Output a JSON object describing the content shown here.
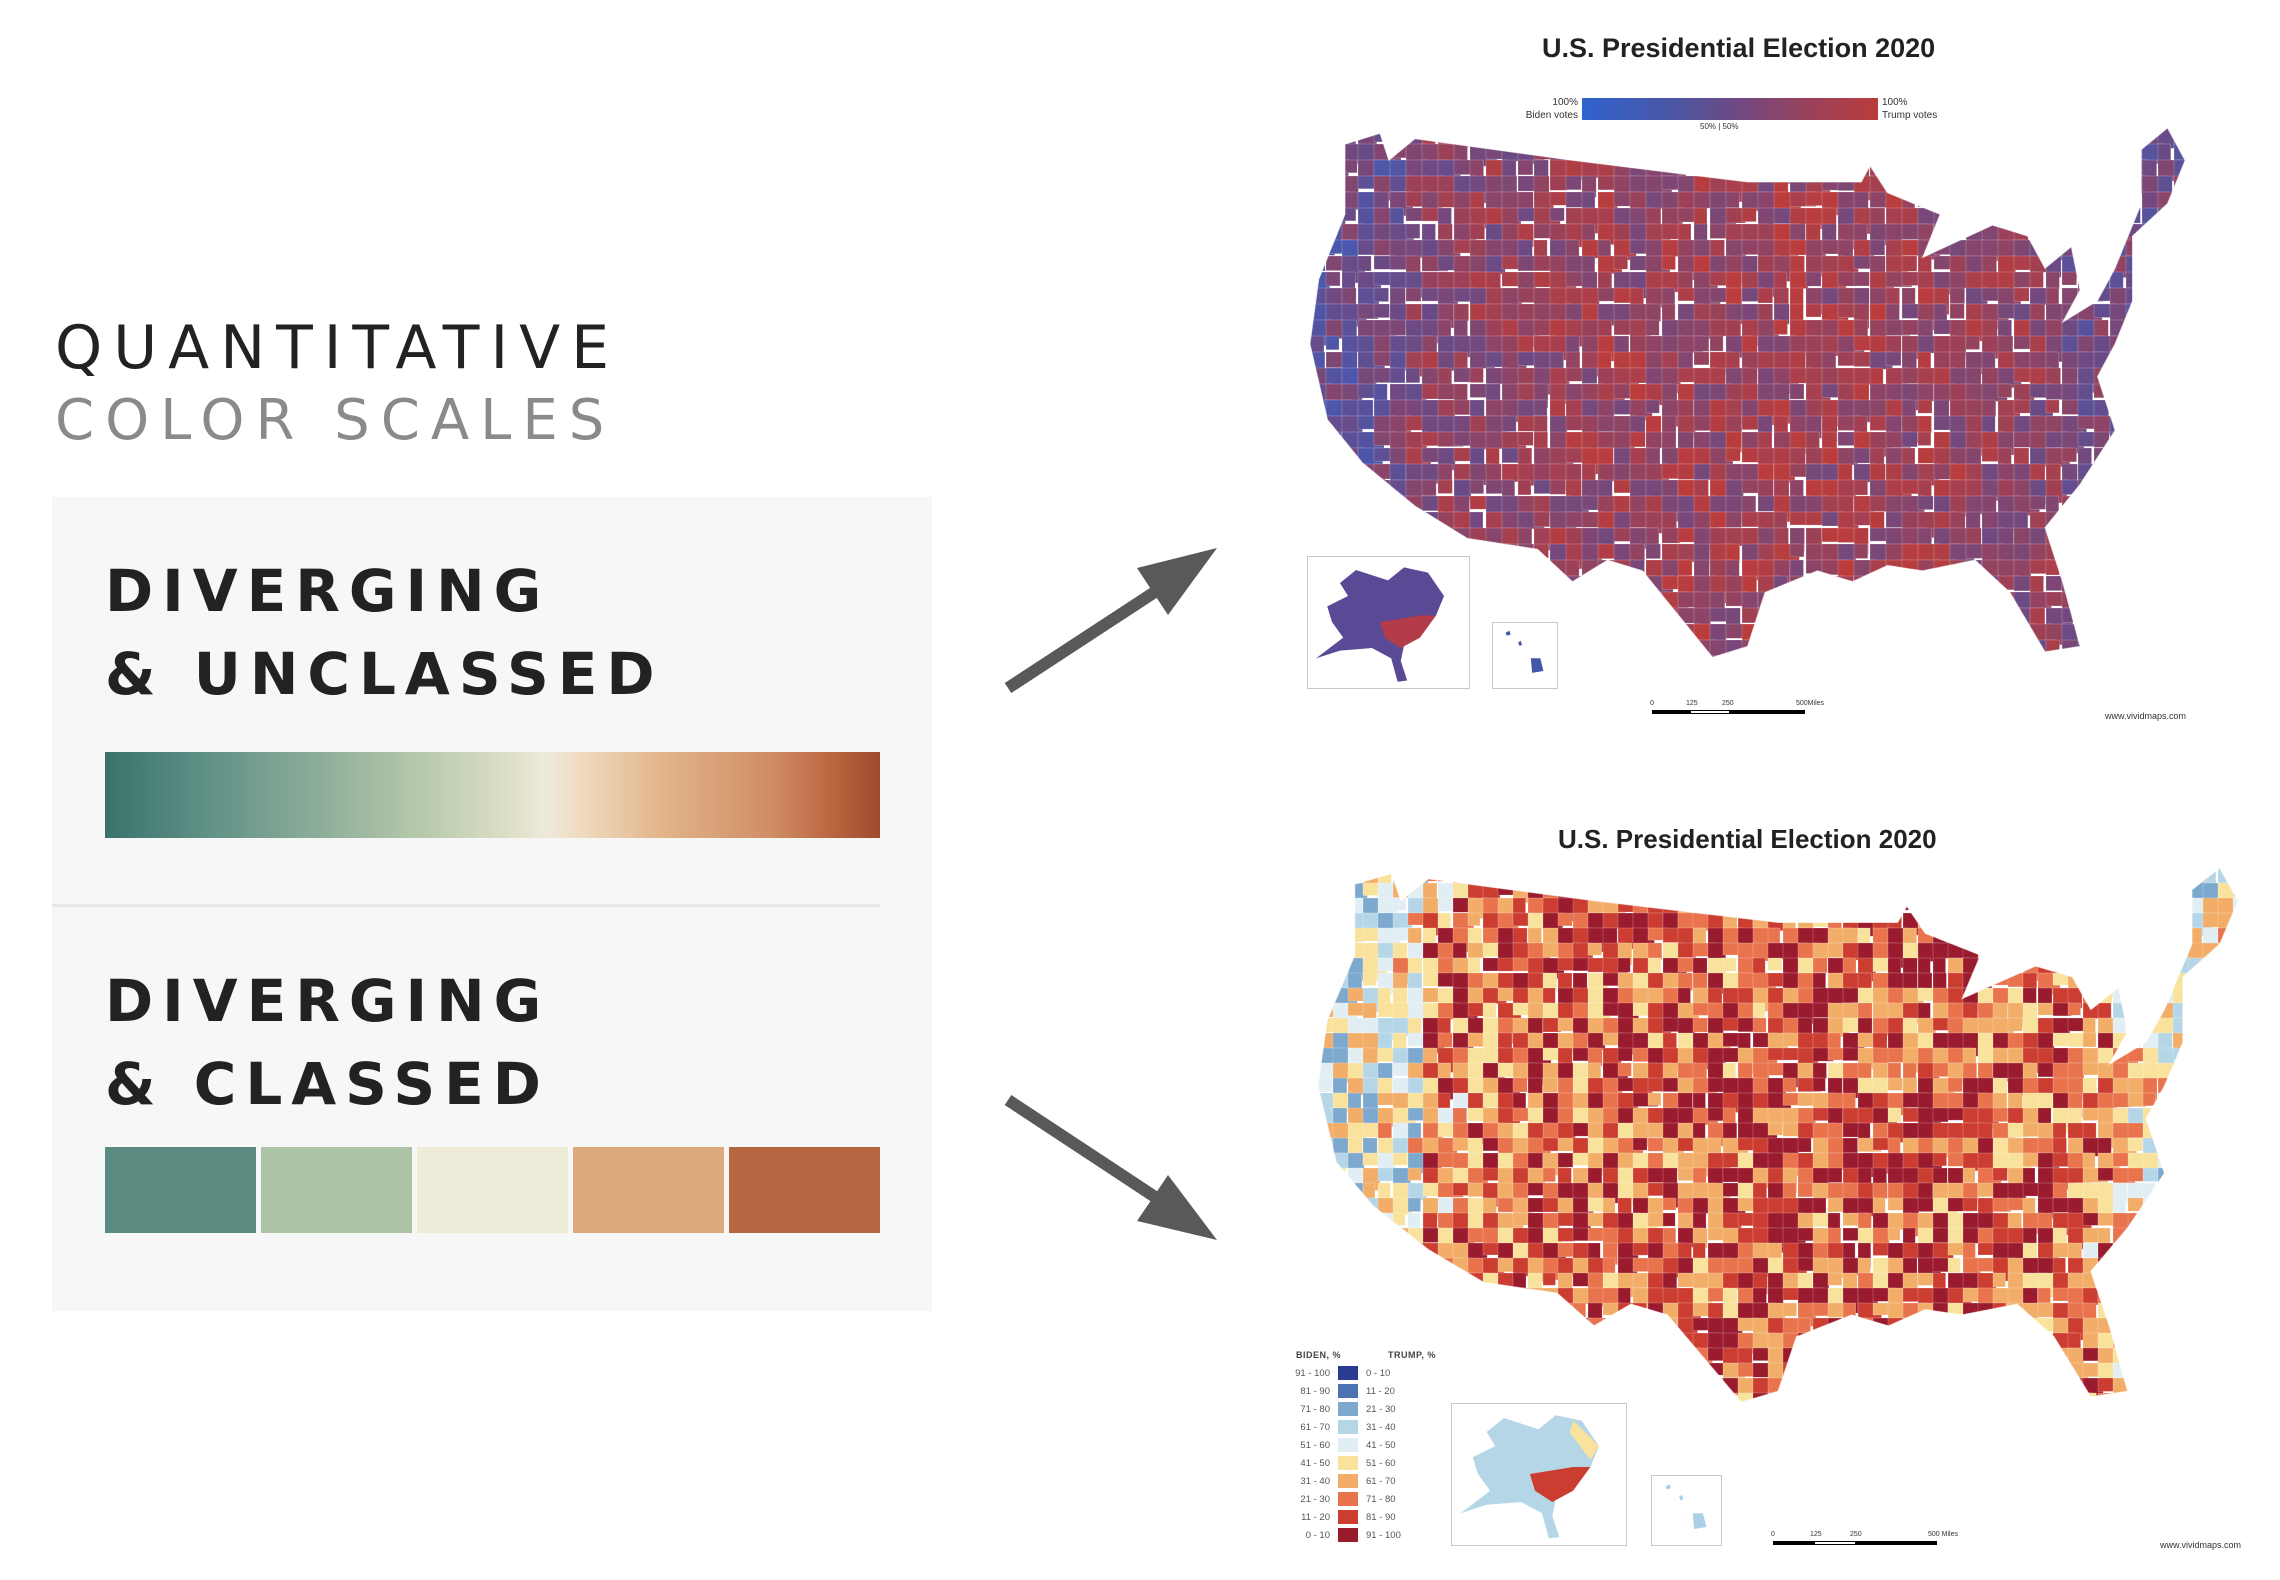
{
  "heading": {
    "line1": "QUANTITATIVE",
    "line2": "COLOR SCALES"
  },
  "sections": [
    {
      "title_line1": "DIVERGING",
      "title_line2": "& UNCLASSED",
      "type": "continuous",
      "colors": [
        "#3a726b",
        "#b4c7a9",
        "#efeadb",
        "#e2b48a",
        "#a14a2d"
      ]
    },
    {
      "title_line1": "DIVERGING",
      "title_line2": "& CLASSED",
      "type": "classed",
      "colors": [
        "#5a8a80",
        "#adc3a6",
        "#efebd9",
        "#dea97c",
        "#b66641"
      ]
    }
  ],
  "arrows": [
    {
      "points_to": "unclassed-map",
      "color": "#595959"
    },
    {
      "points_to": "classed-map",
      "color": "#595959"
    }
  ],
  "map_unclassed": {
    "title": "U.S. Presidential Election 2020",
    "legend": {
      "left_value": "100%",
      "left_label": "Biden votes",
      "right_value": "100%",
      "right_label": "Trump votes",
      "mid_label": "50% | 50%",
      "colors": [
        "#2f63cf",
        "#6a4a86",
        "#bb3c3c"
      ]
    },
    "scale": {
      "ticks": [
        "0",
        "125",
        "250",
        "500Miles"
      ]
    },
    "credit": "www.vividmaps.com"
  },
  "map_classed": {
    "title": "U.S. Presidential Election 2020",
    "legend": {
      "biden_header": "BIDEN, %",
      "trump_header": "TRUMP, %",
      "rows": [
        {
          "biden": "91 - 100",
          "trump": "0 - 10",
          "color": "#2b3a92"
        },
        {
          "biden": "81 - 90",
          "trump": "11 - 20",
          "color": "#4b72b1"
        },
        {
          "biden": "71 - 80",
          "trump": "21 - 30",
          "color": "#7ea9cf"
        },
        {
          "biden": "61 - 70",
          "trump": "31 - 40",
          "color": "#b5d6e6"
        },
        {
          "biden": "51 - 60",
          "trump": "41 - 50",
          "color": "#e1eff5"
        },
        {
          "biden": "41 - 50",
          "trump": "51 - 60",
          "color": "#f9e29c"
        },
        {
          "biden": "31 - 40",
          "trump": "61 - 70",
          "color": "#f2ad68"
        },
        {
          "biden": "21 - 30",
          "trump": "71 - 80",
          "color": "#e8734d"
        },
        {
          "biden": "11 - 20",
          "trump": "81 - 90",
          "color": "#cc3d31"
        },
        {
          "biden": "0 - 10",
          "trump": "91 - 100",
          "color": "#9a1b2e"
        }
      ]
    },
    "scale": {
      "ticks": [
        "0",
        "125",
        "250",
        "500 Miles"
      ]
    },
    "credit": "www.vividmaps.com"
  }
}
